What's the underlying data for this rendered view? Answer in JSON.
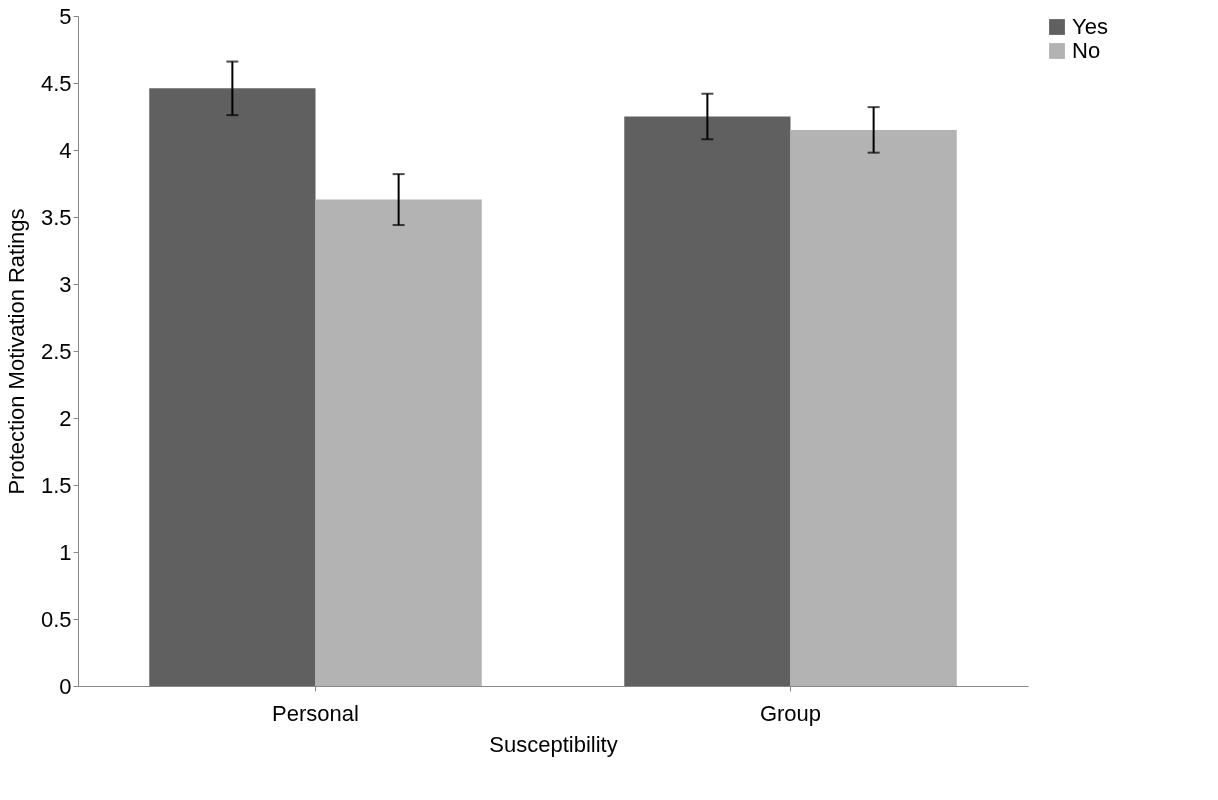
{
  "chart_data": {
    "type": "bar",
    "xlabel": "Susceptibility",
    "ylabel": "Protection Motivation Ratings",
    "categories": [
      "Personal",
      "Group"
    ],
    "series": [
      {
        "name": "Yes",
        "color": "#606060",
        "values": [
          4.46,
          4.25
        ],
        "errors": [
          0.2,
          0.17
        ]
      },
      {
        "name": "No",
        "color": "#b3b3b3",
        "values": [
          3.63,
          4.15
        ],
        "errors": [
          0.19,
          0.17
        ]
      }
    ],
    "ylim": [
      0,
      5
    ],
    "yticks": [
      0,
      0.5,
      1,
      1.5,
      2,
      2.5,
      3,
      3.5,
      4,
      4.5,
      5
    ],
    "grid": false,
    "legend": "right"
  }
}
